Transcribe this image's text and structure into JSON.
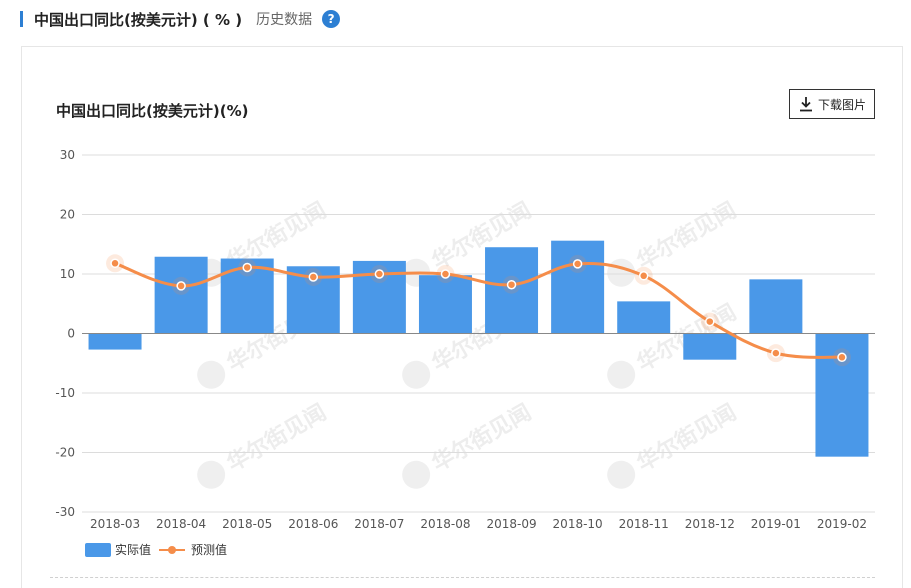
{
  "header": {
    "title": "中国出口同比(按美元计) ( % )",
    "history_link": "历史数据",
    "help_symbol": "?"
  },
  "chart_title": "中国出口同比(按美元计)(%)",
  "download_label": "下载图片",
  "watermark_text": "华尔街见闻",
  "colors": {
    "accent": "#2d7fd3",
    "bar": "#4a98e8",
    "line": "#f58d4a",
    "help": "#2d7fd3"
  },
  "chart_data": {
    "type": "bar",
    "categories": [
      "2018-03",
      "2018-04",
      "2018-05",
      "2018-06",
      "2018-07",
      "2018-08",
      "2018-09",
      "2018-10",
      "2018-11",
      "2018-12",
      "2019-01",
      "2019-02"
    ],
    "series": [
      {
        "name": "实际值",
        "type": "bar",
        "values": [
          -2.7,
          12.9,
          12.6,
          11.3,
          12.2,
          9.8,
          14.5,
          15.6,
          5.4,
          -4.4,
          9.1,
          -20.7
        ]
      },
      {
        "name": "预测值",
        "type": "line",
        "values": [
          11.8,
          8.0,
          11.1,
          9.5,
          10.0,
          10.0,
          8.2,
          11.7,
          9.7,
          2.0,
          -3.3,
          -4.0
        ]
      }
    ],
    "yticks": [
      30,
      20,
      10,
      0,
      -10,
      -20,
      -30
    ],
    "ylim": [
      -30,
      30
    ],
    "grid": true,
    "legend_position": "bottom-left"
  }
}
